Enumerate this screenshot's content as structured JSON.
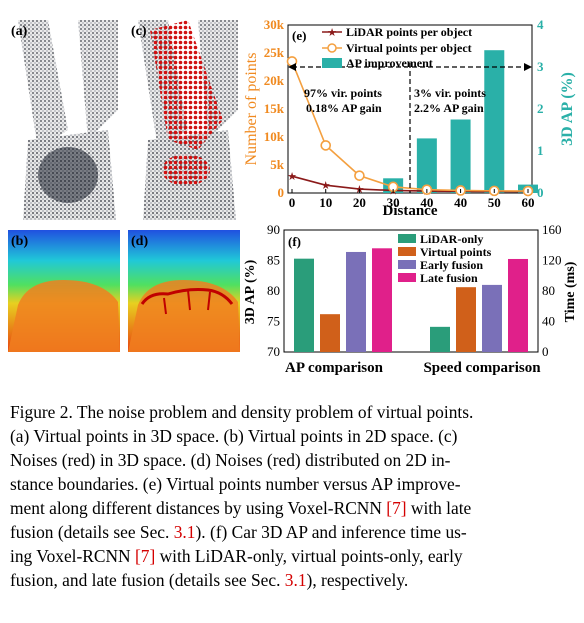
{
  "panels": {
    "a": "(a)",
    "b": "(b)",
    "c": "(c)",
    "d": "(d)"
  },
  "chart_e": {
    "label": "(e)",
    "type": "bar+line",
    "x": [
      0,
      10,
      20,
      30,
      40,
      40,
      50,
      60
    ],
    "x_tick_labels": [
      "0",
      "10",
      "20",
      "30",
      "40",
      "40",
      "50",
      "60"
    ],
    "xlabel": "Distance",
    "ylabel_left": "Number of points",
    "ylabel_right": "3D AP (%)",
    "y_left_ticks": [
      "0",
      "5k",
      "10k",
      "15k",
      "20k",
      "25k",
      "30k"
    ],
    "y_left_range": [
      0,
      30000
    ],
    "y_right_ticks": [
      "0",
      "1",
      "2",
      "3",
      "4"
    ],
    "y_right_range": [
      0,
      4
    ],
    "series": [
      {
        "name": "LiDAR points per object",
        "type": "line",
        "color": "#8b1a1a",
        "values": [
          3000,
          1400,
          700,
          450,
          350,
          300,
          280,
          250
        ]
      },
      {
        "name": "Virtual points per object",
        "type": "line",
        "color": "#f4a040",
        "values": [
          23500,
          8500,
          3100,
          1100,
          600,
          450,
          380,
          350
        ]
      },
      {
        "name": "AP improvement",
        "type": "bar",
        "color": "#2ab0a8",
        "values": [
          0,
          0,
          0,
          0.35,
          1.3,
          1.75,
          3.4,
          0.2
        ]
      }
    ],
    "annotation_left": [
      "97% vir. points",
      "0.18% AP gain"
    ],
    "annotation_right": [
      "3% vir. points",
      "2.2% AP gain"
    ]
  },
  "chart_f": {
    "label": "(f)",
    "type": "bar",
    "categories": [
      "AP comparison",
      "Speed comparison"
    ],
    "ylabel_left": "3D AP (%)",
    "ylabel_right": "Time (ms)",
    "y_left_ticks": [
      "70",
      "75",
      "80",
      "85",
      "90"
    ],
    "y_left_range": [
      70,
      90
    ],
    "y_right_ticks": [
      "0",
      "40",
      "80",
      "120",
      "160"
    ],
    "y_right_range": [
      0,
      160
    ],
    "series": [
      {
        "name": "LiDAR-only",
        "color": "#2a9d7a",
        "ap": 85.3,
        "time": 33
      },
      {
        "name": "Virtual points",
        "color": "#d0601a",
        "ap": 76.2,
        "time": 85
      },
      {
        "name": "Early fusion",
        "color": "#7a70b8",
        "ap": 86.4,
        "time": 88
      },
      {
        "name": "Late fusion",
        "color": "#e0208a",
        "ap": 87.0,
        "time": 122
      }
    ]
  },
  "caption": {
    "line1": "Figure 2. The noise problem and density problem of virtual points.",
    "line2": "(a) Virtual points in 3D space. (b) Virtual points in 2D space. (c)",
    "line3": "Noises (red) in 3D space. (d) Noises (red) distributed on 2D in-",
    "line4": "stance boundaries. (e) Virtual points number versus AP improve-",
    "line5a": "ment along different distances by using Voxel-RCNN ",
    "line5ref": "[7]",
    "line5b": " with late",
    "line6a": "fusion (details see Sec. ",
    "line6ref": "3.1",
    "line6b": "). (f) Car 3D AP and inference time us-",
    "line7a": "ing Voxel-RCNN ",
    "line7ref": "[7]",
    "line7b": " with LiDAR-only, virtual points-only, early",
    "line8a": "fusion, and late fusion (details see Sec. ",
    "line8ref": "3.1",
    "line8b": "), respectively."
  }
}
